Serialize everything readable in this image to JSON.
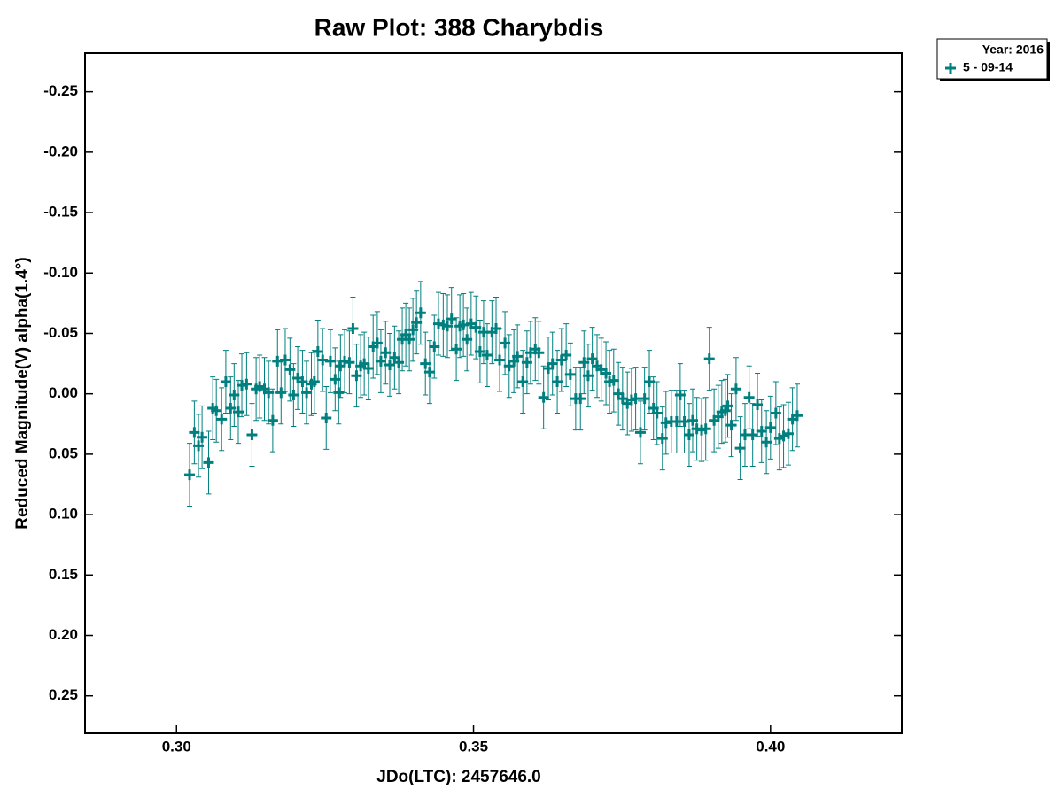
{
  "chart_data": {
    "type": "scatter",
    "title": "Raw Plot: 388 Charybdis",
    "xlabel": "JDo(LTC): 2457646.0",
    "ylabel": "Reduced Magnitude(V) alpha(1.4°)",
    "legend_title": "Year: 2016",
    "legend": "top-right-outside",
    "grid": false,
    "xlim": [
      0.2846,
      0.4221
    ],
    "ylim": [
      0.281,
      -0.282
    ],
    "xticks": [
      {
        "value": 0.3,
        "label": "0.30"
      },
      {
        "value": 0.35,
        "label": "0.35"
      },
      {
        "value": 0.4,
        "label": "0.40"
      }
    ],
    "yticks": [
      {
        "value": -0.25,
        "label": "-0.25"
      },
      {
        "value": -0.2,
        "label": "-0.20"
      },
      {
        "value": -0.15,
        "label": "-0.15"
      },
      {
        "value": -0.1,
        "label": "-0.10"
      },
      {
        "value": -0.05,
        "label": "-0.05"
      },
      {
        "value": 0.0,
        "label": "0.00"
      },
      {
        "value": 0.05,
        "label": "0.05"
      },
      {
        "value": 0.1,
        "label": "0.10"
      },
      {
        "value": 0.15,
        "label": "0.15"
      },
      {
        "value": 0.2,
        "label": "0.20"
      },
      {
        "value": 0.25,
        "label": "0.25"
      }
    ],
    "series": [
      {
        "name": "5 - 09-14",
        "color": "#007f7f",
        "x": [
          0.3022,
          0.303,
          0.3037,
          0.3043,
          0.3054,
          0.3061,
          0.3067,
          0.3076,
          0.3083,
          0.3091,
          0.3097,
          0.3104,
          0.311,
          0.3118,
          0.3127,
          0.3134,
          0.314,
          0.3148,
          0.3155,
          0.3162,
          0.317,
          0.3176,
          0.3183,
          0.3191,
          0.3197,
          0.3204,
          0.3212,
          0.3219,
          0.3227,
          0.3232,
          0.3238,
          0.3246,
          0.3252,
          0.3259,
          0.3267,
          0.3273,
          0.3276,
          0.3283,
          0.3291,
          0.3297,
          0.3303,
          0.331,
          0.3316,
          0.3323,
          0.3331,
          0.3338,
          0.3344,
          0.3352,
          0.3359,
          0.3367,
          0.3374,
          0.338,
          0.3386,
          0.3392,
          0.3398,
          0.3404,
          0.3411,
          0.3419,
          0.3426,
          0.3434,
          0.3441,
          0.3449,
          0.3456,
          0.3463,
          0.3471,
          0.3477,
          0.3483,
          0.3489,
          0.3496,
          0.3504,
          0.3511,
          0.3517,
          0.3523,
          0.3531,
          0.3538,
          0.3544,
          0.3553,
          0.356,
          0.3568,
          0.3574,
          0.3583,
          0.359,
          0.3596,
          0.3604,
          0.361,
          0.3618,
          0.3626,
          0.3633,
          0.3641,
          0.3648,
          0.3656,
          0.3663,
          0.3672,
          0.368,
          0.3686,
          0.3693,
          0.37,
          0.3708,
          0.3715,
          0.3723,
          0.3729,
          0.3736,
          0.3744,
          0.3751,
          0.3759,
          0.3766,
          0.3773,
          0.3781,
          0.3788,
          0.3796,
          0.3803,
          0.3809,
          0.3818,
          0.3824,
          0.3833,
          0.3842,
          0.3848,
          0.3855,
          0.3863,
          0.3869,
          0.3876,
          0.3884,
          0.3891,
          0.3897,
          0.3905,
          0.3912,
          0.3918,
          0.3924,
          0.3928,
          0.3934,
          0.3942,
          0.3949,
          0.3957,
          0.3964,
          0.397,
          0.3978,
          0.3985,
          0.3993,
          0.4,
          0.4009,
          0.4015,
          0.4022,
          0.403,
          0.4037,
          0.4045
        ],
        "values": [
          0.067,
          0.032,
          0.043,
          0.036,
          0.057,
          0.012,
          0.014,
          0.021,
          -0.01,
          0.012,
          0.001,
          0.015,
          -0.007,
          -0.008,
          0.034,
          -0.004,
          -0.006,
          -0.004,
          -0.001,
          0.022,
          -0.027,
          -0.001,
          -0.028,
          -0.02,
          0.001,
          -0.013,
          -0.01,
          -0.001,
          -0.008,
          -0.01,
          -0.035,
          -0.028,
          0.02,
          -0.027,
          -0.012,
          -0.001,
          -0.023,
          -0.027,
          -0.026,
          -0.054,
          -0.015,
          -0.023,
          -0.025,
          -0.021,
          -0.039,
          -0.042,
          -0.027,
          -0.034,
          -0.024,
          -0.03,
          -0.026,
          -0.045,
          -0.049,
          -0.045,
          -0.053,
          -0.059,
          -0.067,
          -0.025,
          -0.018,
          -0.039,
          -0.058,
          -0.057,
          -0.056,
          -0.062,
          -0.037,
          -0.056,
          -0.057,
          -0.045,
          -0.058,
          -0.055,
          -0.035,
          -0.051,
          -0.032,
          -0.051,
          -0.054,
          -0.028,
          -0.042,
          -0.023,
          -0.027,
          -0.031,
          -0.01,
          -0.026,
          -0.034,
          -0.037,
          -0.034,
          0.003,
          -0.021,
          -0.025,
          -0.01,
          -0.028,
          -0.032,
          -0.016,
          0.004,
          0.004,
          -0.026,
          -0.015,
          -0.029,
          -0.023,
          -0.02,
          -0.017,
          -0.01,
          -0.011,
          0.0,
          0.004,
          0.008,
          0.005,
          0.004,
          0.032,
          0.004,
          -0.01,
          0.012,
          0.016,
          0.037,
          0.024,
          0.023,
          0.023,
          0.001,
          0.023,
          0.034,
          0.022,
          0.029,
          0.03,
          0.029,
          -0.029,
          0.022,
          0.019,
          0.015,
          0.014,
          0.01,
          0.026,
          -0.004,
          0.045,
          0.034,
          0.003,
          0.034,
          0.009,
          0.031,
          0.04,
          0.028,
          0.016,
          0.037,
          0.035,
          0.033,
          0.021,
          0.018
        ],
        "errors": [
          0.026,
          0.026,
          0.026,
          0.026,
          0.026,
          0.026,
          0.026,
          0.026,
          0.026,
          0.026,
          0.026,
          0.026,
          0.026,
          0.026,
          0.026,
          0.026,
          0.026,
          0.026,
          0.026,
          0.026,
          0.026,
          0.026,
          0.026,
          0.026,
          0.026,
          0.026,
          0.026,
          0.026,
          0.026,
          0.026,
          0.026,
          0.026,
          0.026,
          0.026,
          0.026,
          0.026,
          0.026,
          0.026,
          0.026,
          0.026,
          0.026,
          0.026,
          0.026,
          0.026,
          0.026,
          0.026,
          0.026,
          0.026,
          0.026,
          0.026,
          0.026,
          0.026,
          0.026,
          0.026,
          0.026,
          0.026,
          0.026,
          0.026,
          0.026,
          0.026,
          0.026,
          0.026,
          0.026,
          0.026,
          0.026,
          0.026,
          0.026,
          0.026,
          0.026,
          0.026,
          0.026,
          0.026,
          0.026,
          0.026,
          0.026,
          0.026,
          0.026,
          0.026,
          0.026,
          0.026,
          0.026,
          0.026,
          0.026,
          0.026,
          0.026,
          0.026,
          0.026,
          0.026,
          0.026,
          0.026,
          0.026,
          0.026,
          0.026,
          0.026,
          0.026,
          0.026,
          0.026,
          0.026,
          0.026,
          0.026,
          0.026,
          0.026,
          0.026,
          0.026,
          0.026,
          0.026,
          0.026,
          0.026,
          0.026,
          0.026,
          0.026,
          0.026,
          0.026,
          0.026,
          0.026,
          0.026,
          0.026,
          0.026,
          0.026,
          0.026,
          0.026,
          0.026,
          0.026,
          0.026,
          0.026,
          0.026,
          0.026,
          0.026,
          0.026,
          0.026,
          0.026,
          0.026,
          0.026,
          0.026,
          0.026,
          0.026,
          0.026,
          0.026,
          0.026,
          0.026,
          0.026,
          0.026,
          0.026,
          0.026,
          0.026
        ]
      }
    ]
  }
}
